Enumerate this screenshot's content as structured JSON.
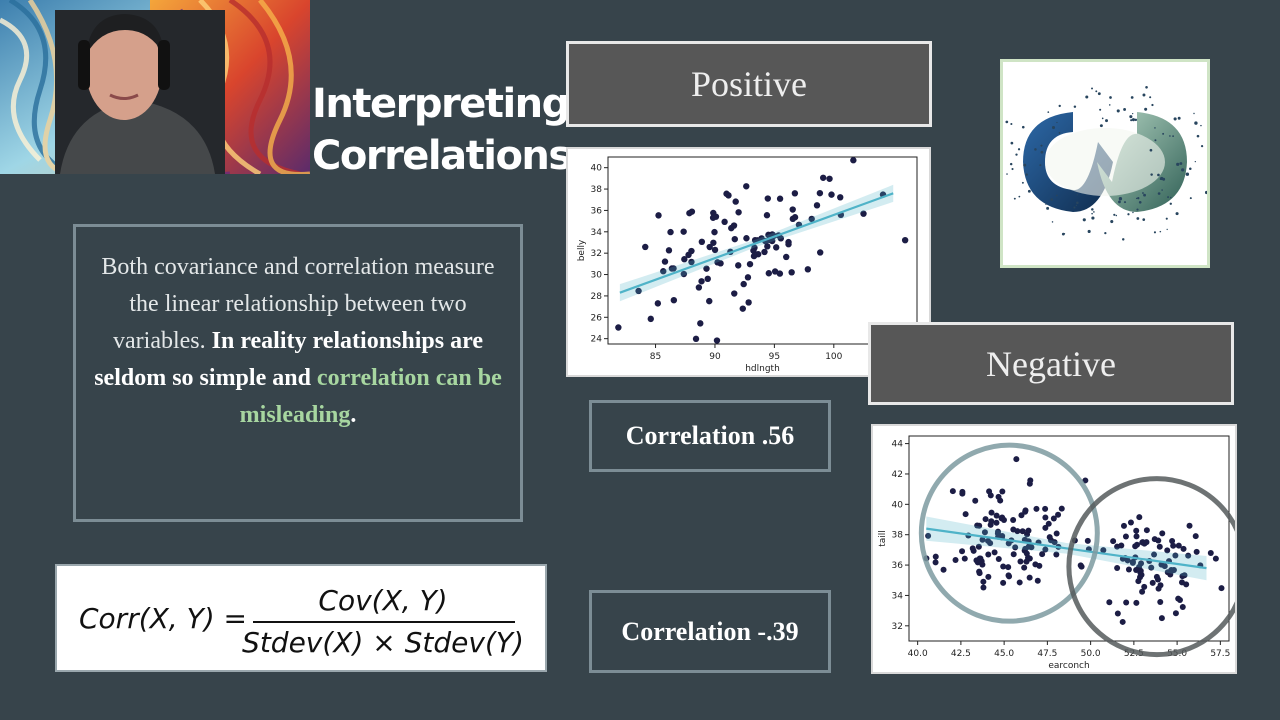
{
  "slide": {
    "title_line1": "Interpreting",
    "title_line2": "Correlations",
    "body_text": {
      "part1": "Both covariance and correlation measure the linear relationship between two variables.",
      "part2": "In reality relationships are seldom so simple and",
      "part3": "correlation can be misleading",
      "part4": "."
    },
    "positive_label": "Positive",
    "negative_label": "Negative",
    "positive_corr": "Correlation .56",
    "negative_corr": "Correlation -.39",
    "formula": {
      "lhs": "Corr(X, Y) =",
      "numerator": "Cov(X, Y)",
      "denominator": "Stdev(X) × Stdev(Y)"
    },
    "colors": {
      "background": "#37444b",
      "highlight_green": "#a7d6a0",
      "point": "#1c1d45",
      "regression": "#4fb3c8"
    }
  },
  "chart_data": [
    {
      "type": "scatter",
      "xlabel": "hdlngth",
      "ylabel": "belly",
      "xlim": [
        81,
        107
      ],
      "ylim": [
        23.5,
        41
      ],
      "x_ticks": [
        85,
        90,
        95,
        100
      ],
      "y_ticks": [
        24,
        26,
        28,
        30,
        32,
        34,
        36,
        38,
        40
      ],
      "regression": {
        "x": [
          82,
          105
        ],
        "y": [
          28.3,
          37.6
        ]
      },
      "points": {
        "seed": 7,
        "count": 104,
        "x_center": 92.6,
        "x_sd": 4.3,
        "slope": 0.36,
        "intercept_x": 92.6,
        "intercept_y": 32.8,
        "noise_sd": 2.9
      }
    },
    {
      "type": "scatter",
      "xlabel": "earconch",
      "ylabel": "taill",
      "xlim": [
        39.5,
        58
      ],
      "ylim": [
        31,
        44.5
      ],
      "x_ticks": [
        40.0,
        42.5,
        45.0,
        47.5,
        50.0,
        52.5,
        55.0,
        57.5
      ],
      "x_tick_labels": [
        "40.0",
        "42.5",
        "45.0",
        "47.5",
        "50.0",
        "52.5",
        "55.0",
        "57.5"
      ],
      "y_ticks": [
        32,
        34,
        36,
        38,
        40,
        42,
        44
      ],
      "regression": {
        "x": [
          40.5,
          56.7
        ],
        "y": [
          38.4,
          35.8
        ]
      },
      "clusters": [
        {
          "count": 118,
          "x_center": 45.3,
          "x_sd": 1.9,
          "y_center": 37.8,
          "y_sd": 1.9
        },
        {
          "count": 86,
          "x_center": 53.6,
          "x_sd": 1.6,
          "y_center": 36.2,
          "y_sd": 1.6
        }
      ]
    }
  ]
}
